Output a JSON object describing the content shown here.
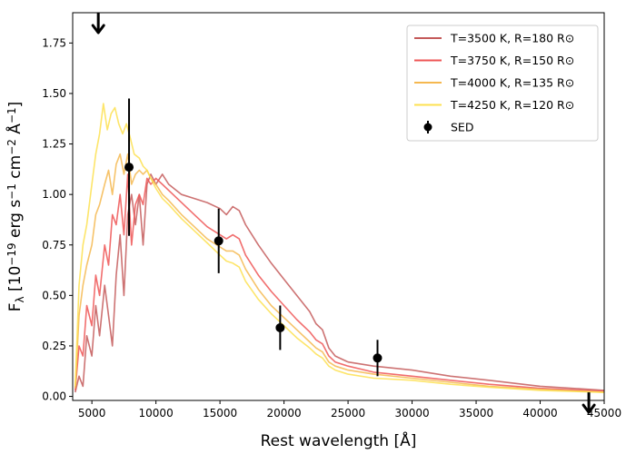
{
  "chart_data": {
    "type": "line",
    "xlabel": "Rest wavelength [Å]",
    "ylabel": "F_λ [10^−19 erg s^−1 cm^−2 Å^−1]",
    "xlim": [
      3500,
      45000
    ],
    "ylim": [
      -0.02,
      1.9
    ],
    "x_ticks": [
      5000,
      10000,
      15000,
      20000,
      25000,
      30000,
      35000,
      40000,
      45000
    ],
    "y_ticks": [
      0.0,
      0.25,
      0.5,
      0.75,
      1.0,
      1.25,
      1.5,
      1.75
    ],
    "grid": false,
    "legend_position": "top-right",
    "series": [
      {
        "name": "T=3500 K, R=180 R⊙",
        "color": "#c45a5a",
        "points": [
          [
            3700,
            0.02
          ],
          [
            4000,
            0.1
          ],
          [
            4300,
            0.05
          ],
          [
            4600,
            0.3
          ],
          [
            5000,
            0.2
          ],
          [
            5300,
            0.45
          ],
          [
            5600,
            0.3
          ],
          [
            6000,
            0.55
          ],
          [
            6300,
            0.4
          ],
          [
            6600,
            0.25
          ],
          [
            6900,
            0.6
          ],
          [
            7200,
            0.8
          ],
          [
            7500,
            0.5
          ],
          [
            7800,
            0.9
          ],
          [
            8100,
            1.0
          ],
          [
            8400,
            0.85
          ],
          [
            8700,
            1.0
          ],
          [
            9000,
            0.75
          ],
          [
            9300,
            1.05
          ],
          [
            9600,
            1.1
          ],
          [
            10000,
            1.05
          ],
          [
            10500,
            1.1
          ],
          [
            11000,
            1.05
          ],
          [
            12000,
            1.0
          ],
          [
            13000,
            0.98
          ],
          [
            14000,
            0.96
          ],
          [
            15000,
            0.93
          ],
          [
            15500,
            0.9
          ],
          [
            16000,
            0.94
          ],
          [
            16500,
            0.92
          ],
          [
            17000,
            0.85
          ],
          [
            18000,
            0.75
          ],
          [
            19000,
            0.66
          ],
          [
            20000,
            0.58
          ],
          [
            21000,
            0.5
          ],
          [
            22000,
            0.42
          ],
          [
            22500,
            0.36
          ],
          [
            23000,
            0.33
          ],
          [
            23500,
            0.24
          ],
          [
            24000,
            0.2
          ],
          [
            25000,
            0.17
          ],
          [
            27000,
            0.15
          ],
          [
            30000,
            0.13
          ],
          [
            33000,
            0.1
          ],
          [
            36000,
            0.08
          ],
          [
            40000,
            0.05
          ],
          [
            45000,
            0.03
          ]
        ]
      },
      {
        "name": "T=3750 K, R=150 R⊙",
        "color": "#ee5555",
        "points": [
          [
            3700,
            0.03
          ],
          [
            4000,
            0.25
          ],
          [
            4300,
            0.2
          ],
          [
            4600,
            0.45
          ],
          [
            5000,
            0.35
          ],
          [
            5300,
            0.6
          ],
          [
            5600,
            0.5
          ],
          [
            6000,
            0.75
          ],
          [
            6300,
            0.65
          ],
          [
            6600,
            0.9
          ],
          [
            6900,
            0.85
          ],
          [
            7200,
            1.0
          ],
          [
            7500,
            0.8
          ],
          [
            7800,
            1.1
          ],
          [
            8100,
            0.75
          ],
          [
            8400,
            0.95
          ],
          [
            8700,
            1.0
          ],
          [
            9000,
            0.95
          ],
          [
            9300,
            1.08
          ],
          [
            9600,
            1.05
          ],
          [
            10000,
            1.08
          ],
          [
            10500,
            1.05
          ],
          [
            11000,
            1.02
          ],
          [
            12000,
            0.96
          ],
          [
            13000,
            0.9
          ],
          [
            14000,
            0.84
          ],
          [
            15000,
            0.8
          ],
          [
            15500,
            0.78
          ],
          [
            16000,
            0.8
          ],
          [
            16500,
            0.78
          ],
          [
            17000,
            0.7
          ],
          [
            18000,
            0.6
          ],
          [
            19000,
            0.52
          ],
          [
            20000,
            0.45
          ],
          [
            21000,
            0.38
          ],
          [
            22000,
            0.32
          ],
          [
            22500,
            0.28
          ],
          [
            23000,
            0.26
          ],
          [
            23500,
            0.2
          ],
          [
            24000,
            0.17
          ],
          [
            25000,
            0.15
          ],
          [
            27000,
            0.12
          ],
          [
            30000,
            0.1
          ],
          [
            33000,
            0.08
          ],
          [
            36000,
            0.06
          ],
          [
            40000,
            0.04
          ],
          [
            45000,
            0.025
          ]
        ]
      },
      {
        "name": "T=4000 K, R=135 R⊙",
        "color": "#f5b850",
        "points": [
          [
            3700,
            0.04
          ],
          [
            4000,
            0.4
          ],
          [
            4300,
            0.55
          ],
          [
            4600,
            0.65
          ],
          [
            5000,
            0.75
          ],
          [
            5300,
            0.9
          ],
          [
            5600,
            0.95
          ],
          [
            6000,
            1.05
          ],
          [
            6300,
            1.12
          ],
          [
            6600,
            1.0
          ],
          [
            6900,
            1.15
          ],
          [
            7200,
            1.2
          ],
          [
            7500,
            1.1
          ],
          [
            7800,
            1.2
          ],
          [
            8100,
            1.05
          ],
          [
            8400,
            1.1
          ],
          [
            8700,
            1.12
          ],
          [
            9000,
            1.1
          ],
          [
            9300,
            1.12
          ],
          [
            9600,
            1.08
          ],
          [
            10000,
            1.05
          ],
          [
            10500,
            1.0
          ],
          [
            11000,
            0.97
          ],
          [
            12000,
            0.9
          ],
          [
            13000,
            0.84
          ],
          [
            14000,
            0.78
          ],
          [
            15000,
            0.74
          ],
          [
            15500,
            0.72
          ],
          [
            16000,
            0.72
          ],
          [
            16500,
            0.7
          ],
          [
            17000,
            0.63
          ],
          [
            18000,
            0.53
          ],
          [
            19000,
            0.45
          ],
          [
            20000,
            0.39
          ],
          [
            21000,
            0.33
          ],
          [
            22000,
            0.27
          ],
          [
            22500,
            0.24
          ],
          [
            23000,
            0.22
          ],
          [
            23500,
            0.17
          ],
          [
            24000,
            0.15
          ],
          [
            25000,
            0.13
          ],
          [
            27000,
            0.11
          ],
          [
            30000,
            0.09
          ],
          [
            33000,
            0.07
          ],
          [
            36000,
            0.05
          ],
          [
            40000,
            0.035
          ],
          [
            45000,
            0.02
          ]
        ]
      },
      {
        "name": "T=4250 K, R=120 R⊙",
        "color": "#fde150",
        "points": [
          [
            3700,
            0.05
          ],
          [
            4000,
            0.55
          ],
          [
            4300,
            0.75
          ],
          [
            4600,
            0.85
          ],
          [
            5000,
            1.05
          ],
          [
            5300,
            1.2
          ],
          [
            5600,
            1.3
          ],
          [
            5900,
            1.45
          ],
          [
            6200,
            1.32
          ],
          [
            6500,
            1.4
          ],
          [
            6800,
            1.43
          ],
          [
            7100,
            1.35
          ],
          [
            7400,
            1.3
          ],
          [
            7700,
            1.35
          ],
          [
            8000,
            1.28
          ],
          [
            8300,
            1.2
          ],
          [
            8700,
            1.18
          ],
          [
            9000,
            1.14
          ],
          [
            9300,
            1.12
          ],
          [
            9600,
            1.08
          ],
          [
            10000,
            1.03
          ],
          [
            10500,
            0.98
          ],
          [
            11000,
            0.95
          ],
          [
            12000,
            0.88
          ],
          [
            13000,
            0.82
          ],
          [
            14000,
            0.76
          ],
          [
            15000,
            0.7
          ],
          [
            15500,
            0.67
          ],
          [
            16000,
            0.66
          ],
          [
            16500,
            0.64
          ],
          [
            17000,
            0.57
          ],
          [
            18000,
            0.48
          ],
          [
            19000,
            0.41
          ],
          [
            20000,
            0.35
          ],
          [
            21000,
            0.29
          ],
          [
            22000,
            0.24
          ],
          [
            22500,
            0.21
          ],
          [
            23000,
            0.19
          ],
          [
            23500,
            0.15
          ],
          [
            24000,
            0.13
          ],
          [
            25000,
            0.11
          ],
          [
            27000,
            0.09
          ],
          [
            30000,
            0.08
          ],
          [
            33000,
            0.06
          ],
          [
            36000,
            0.045
          ],
          [
            40000,
            0.03
          ],
          [
            45000,
            0.02
          ]
        ]
      }
    ],
    "sed": {
      "name": "SED",
      "color": "#000000",
      "points": [
        {
          "x": 7900,
          "y": 1.135,
          "yerr": 0.34
        },
        {
          "x": 14900,
          "y": 0.77,
          "yerr": 0.16
        },
        {
          "x": 19700,
          "y": 0.34,
          "yerr": 0.11
        },
        {
          "x": 27300,
          "y": 0.19,
          "yerr": 0.09
        }
      ],
      "upper_limits": [
        {
          "x": 5500,
          "y": 1.9
        },
        {
          "x": 43800,
          "y": 0.02
        }
      ]
    }
  }
}
